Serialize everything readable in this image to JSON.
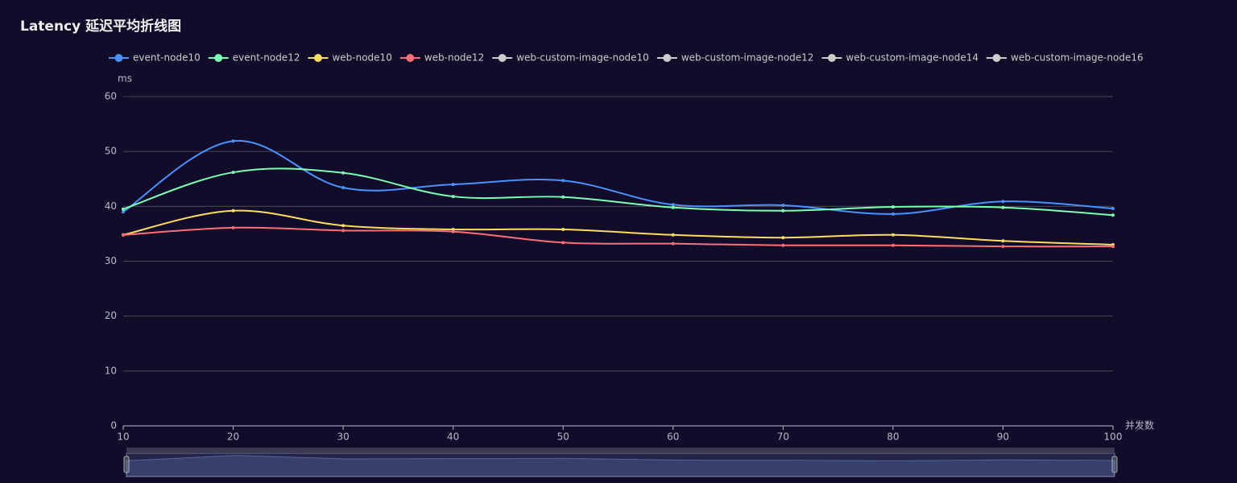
{
  "chart_data": {
    "type": "line",
    "title": "Latency 延迟平均折线图",
    "y_label": "ms",
    "x_label": "并发数",
    "x": [
      10,
      20,
      30,
      40,
      50,
      60,
      70,
      80,
      90,
      100
    ],
    "xlim": [
      10,
      100
    ],
    "xticks": [
      10,
      20,
      30,
      40,
      50,
      60,
      70,
      80,
      90,
      100
    ],
    "ylim": [
      0,
      60
    ],
    "yticks": [
      0,
      10,
      20,
      30,
      40,
      50,
      60
    ],
    "grid": true,
    "smooth": true,
    "legend": "top",
    "series": [
      {
        "name": "event-node10",
        "color": "#4992ff",
        "values": [
          39.0,
          51.9,
          43.4,
          44.0,
          44.7,
          40.3,
          40.2,
          38.6,
          40.9,
          39.6
        ]
      },
      {
        "name": "event-node12",
        "color": "#7cffb2",
        "values": [
          39.5,
          46.2,
          46.1,
          41.8,
          41.7,
          39.8,
          39.2,
          39.9,
          39.8,
          38.4
        ]
      },
      {
        "name": "web-node10",
        "color": "#fddd60",
        "values": [
          34.8,
          39.2,
          36.5,
          35.8,
          35.8,
          34.8,
          34.3,
          34.8,
          33.7,
          33.0
        ]
      },
      {
        "name": "web-node12",
        "color": "#ff6e76",
        "values": [
          34.8,
          36.1,
          35.6,
          35.4,
          33.4,
          33.2,
          32.9,
          32.9,
          32.7,
          32.7
        ]
      },
      {
        "name": "web-custom-image-node10",
        "color": "#cccccc",
        "values": [
          null,
          null,
          null,
          null,
          null,
          null,
          null,
          null,
          null,
          null
        ]
      },
      {
        "name": "web-custom-image-node12",
        "color": "#cccccc",
        "values": [
          null,
          null,
          null,
          null,
          null,
          null,
          null,
          null,
          null,
          null
        ]
      },
      {
        "name": "web-custom-image-node14",
        "color": "#cccccc",
        "values": [
          null,
          null,
          null,
          null,
          null,
          null,
          null,
          null,
          null,
          null
        ]
      },
      {
        "name": "web-custom-image-node16",
        "color": "#cccccc",
        "values": [
          null,
          null,
          null,
          null,
          null,
          null,
          null,
          null,
          null,
          null
        ]
      }
    ]
  }
}
